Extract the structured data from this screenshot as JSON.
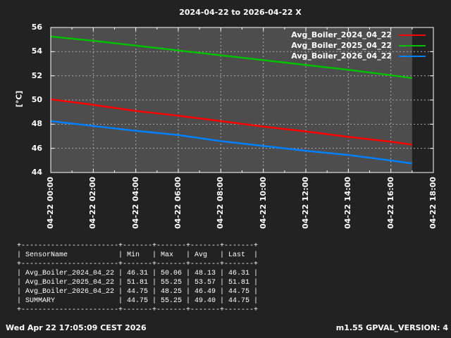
{
  "chart_data": {
    "type": "line",
    "title": "2024-04-22 to 2026-04-22 X",
    "xlabel": "",
    "ylabel": "[°C]",
    "ylim": [
      44,
      56
    ],
    "yticks": [
      "44",
      "46",
      "48",
      "50",
      "52",
      "54",
      "56"
    ],
    "xticks": [
      "04-22 00:00",
      "04-22 02:00",
      "04-22 04:00",
      "04-22 06:00",
      "04-22 08:00",
      "04-22 10:00",
      "04-22 12:00",
      "04-22 14:00",
      "04-22 16:00",
      "04-22 18:00"
    ],
    "xlim_hours": [
      0,
      18
    ],
    "grid": true,
    "legend_position": "top-right",
    "x": [
      0,
      2,
      4,
      6,
      8,
      10,
      12,
      14,
      16,
      17
    ],
    "series": [
      {
        "name": "Avg_Boiler_2024_04_22",
        "color": "#ff0000",
        "values": [
          50.06,
          49.6,
          49.1,
          48.7,
          48.25,
          47.8,
          47.4,
          46.95,
          46.55,
          46.31
        ]
      },
      {
        "name": "Avg_Boiler_2025_04_22",
        "color": "#00c000",
        "values": [
          55.25,
          54.9,
          54.5,
          54.1,
          53.7,
          53.3,
          52.9,
          52.5,
          52.05,
          51.81
        ]
      },
      {
        "name": "Avg_Boiler_2026_04_22",
        "color": "#0080ff",
        "values": [
          48.25,
          47.85,
          47.45,
          47.1,
          46.6,
          46.2,
          45.8,
          45.45,
          45.0,
          44.75
        ]
      }
    ]
  },
  "table": {
    "headers": [
      "SensorName",
      "Min",
      "Max",
      "Avg",
      "Last"
    ],
    "rows": [
      [
        "Avg_Boiler_2024_04_22",
        "46.31",
        "50.06",
        "48.13",
        "46.31"
      ],
      [
        "Avg_Boiler_2025_04_22",
        "51.81",
        "55.25",
        "53.57",
        "51.81"
      ],
      [
        "Avg_Boiler_2026_04_22",
        "44.75",
        "48.25",
        "46.49",
        "44.75"
      ],
      [
        "SUMMARY",
        "44.75",
        "55.25",
        "49.40",
        "44.75"
      ]
    ]
  },
  "footer": {
    "timestamp": "Wed Apr 22 17:05:09 CEST 2026",
    "version": "m1.55 GPVAL_VERSION: 4"
  }
}
